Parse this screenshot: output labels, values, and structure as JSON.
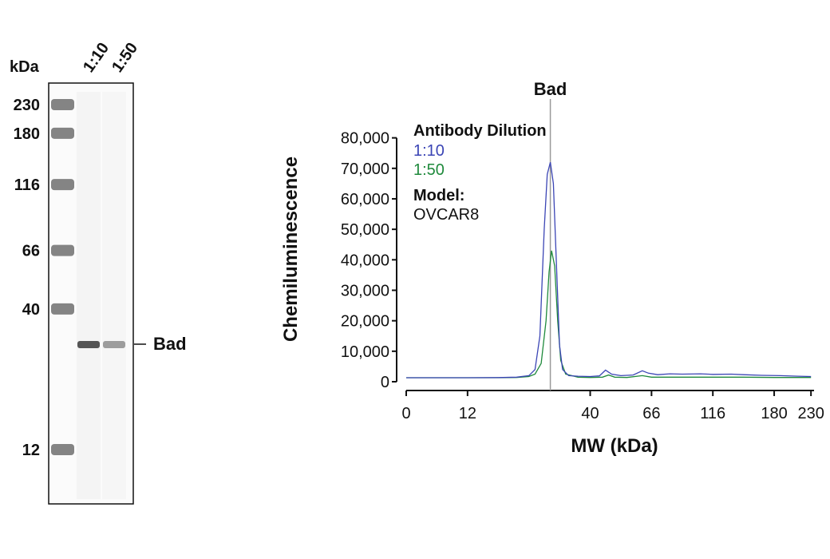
{
  "gel": {
    "unit_label": "kDa",
    "lane_labels": [
      "1:10",
      "1:50"
    ],
    "ladder": [
      {
        "label": "230",
        "kda": 230
      },
      {
        "label": "180",
        "kda": 180
      },
      {
        "label": "116",
        "kda": 116
      },
      {
        "label": "66",
        "kda": 66
      },
      {
        "label": "40",
        "kda": 40
      },
      {
        "label": "12",
        "kda": 12
      }
    ],
    "band_label": "Bad",
    "band_intensity": [
      1.0,
      0.55
    ]
  },
  "colors": {
    "blue": "#3b45b5",
    "green": "#1f8a3c",
    "marker_line": "#999999",
    "axis": "#111111"
  },
  "chart_data": {
    "type": "line",
    "title": "",
    "xlabel": "MW (kDa)",
    "ylabel": "Chemiluminescence",
    "marker_label": "Bad",
    "marker_tick": 2.35,
    "x_ticks": [
      {
        "label": "0",
        "pos": 0
      },
      {
        "label": "12",
        "pos": 1
      },
      {
        "label": "40",
        "pos": 3
      },
      {
        "label": "66",
        "pos": 4
      },
      {
        "label": "116",
        "pos": 5
      },
      {
        "label": "180",
        "pos": 6
      },
      {
        "label": "230",
        "pos": 6.6
      }
    ],
    "xlim": [
      0,
      6.65
    ],
    "y_ticks": [
      {
        "label": "0",
        "value": 0
      },
      {
        "label": "10,000",
        "value": 10000
      },
      {
        "label": "20,000",
        "value": 20000
      },
      {
        "label": "30,000",
        "value": 30000
      },
      {
        "label": "40,000",
        "value": 40000
      },
      {
        "label": "50,000",
        "value": 50000
      },
      {
        "label": "60,000",
        "value": 60000
      },
      {
        "label": "70,000",
        "value": 70000
      },
      {
        "label": "80,000",
        "value": 80000
      }
    ],
    "ylim": [
      0,
      82000
    ],
    "legend": {
      "heading": "Antibody Dilution",
      "items": [
        "1:10",
        "1:50"
      ],
      "model_heading": "Model:",
      "model_value": "OVCAR8",
      "placement": "top-left"
    },
    "series": [
      {
        "name": "1:10",
        "color": "#3b45b5",
        "points": [
          [
            0,
            1300
          ],
          [
            0.5,
            1300
          ],
          [
            1,
            1300
          ],
          [
            1.5,
            1350
          ],
          [
            1.8,
            1500
          ],
          [
            2.0,
            2000
          ],
          [
            2.1,
            4000
          ],
          [
            2.18,
            15000
          ],
          [
            2.25,
            50000
          ],
          [
            2.3,
            68000
          ],
          [
            2.35,
            72000
          ],
          [
            2.4,
            65000
          ],
          [
            2.45,
            38000
          ],
          [
            2.5,
            12000
          ],
          [
            2.55,
            4000
          ],
          [
            2.65,
            2000
          ],
          [
            2.8,
            1800
          ],
          [
            3.0,
            1700
          ],
          [
            3.15,
            1900
          ],
          [
            3.25,
            3800
          ],
          [
            3.35,
            2500
          ],
          [
            3.5,
            2000
          ],
          [
            3.7,
            2200
          ],
          [
            3.85,
            3600
          ],
          [
            3.95,
            2800
          ],
          [
            4.1,
            2300
          ],
          [
            4.3,
            2600
          ],
          [
            4.5,
            2500
          ],
          [
            4.8,
            2600
          ],
          [
            5.0,
            2400
          ],
          [
            5.3,
            2500
          ],
          [
            5.5,
            2300
          ],
          [
            5.8,
            2100
          ],
          [
            6.1,
            2000
          ],
          [
            6.4,
            1800
          ],
          [
            6.6,
            1700
          ]
        ]
      },
      {
        "name": "1:50",
        "color": "#1f8a3c",
        "points": [
          [
            0,
            1300
          ],
          [
            0.5,
            1300
          ],
          [
            1,
            1300
          ],
          [
            1.5,
            1300
          ],
          [
            1.8,
            1400
          ],
          [
            2.0,
            1700
          ],
          [
            2.1,
            2500
          ],
          [
            2.2,
            6000
          ],
          [
            2.28,
            20000
          ],
          [
            2.33,
            36000
          ],
          [
            2.37,
            43000
          ],
          [
            2.42,
            38000
          ],
          [
            2.47,
            20000
          ],
          [
            2.52,
            7000
          ],
          [
            2.6,
            2500
          ],
          [
            2.8,
            1500
          ],
          [
            3.0,
            1400
          ],
          [
            3.2,
            1500
          ],
          [
            3.3,
            2200
          ],
          [
            3.4,
            1500
          ],
          [
            3.6,
            1400
          ],
          [
            3.85,
            2000
          ],
          [
            4.0,
            1500
          ],
          [
            4.3,
            1500
          ],
          [
            4.6,
            1500
          ],
          [
            5.0,
            1500
          ],
          [
            5.5,
            1500
          ],
          [
            6.0,
            1400
          ],
          [
            6.6,
            1400
          ]
        ]
      }
    ]
  }
}
